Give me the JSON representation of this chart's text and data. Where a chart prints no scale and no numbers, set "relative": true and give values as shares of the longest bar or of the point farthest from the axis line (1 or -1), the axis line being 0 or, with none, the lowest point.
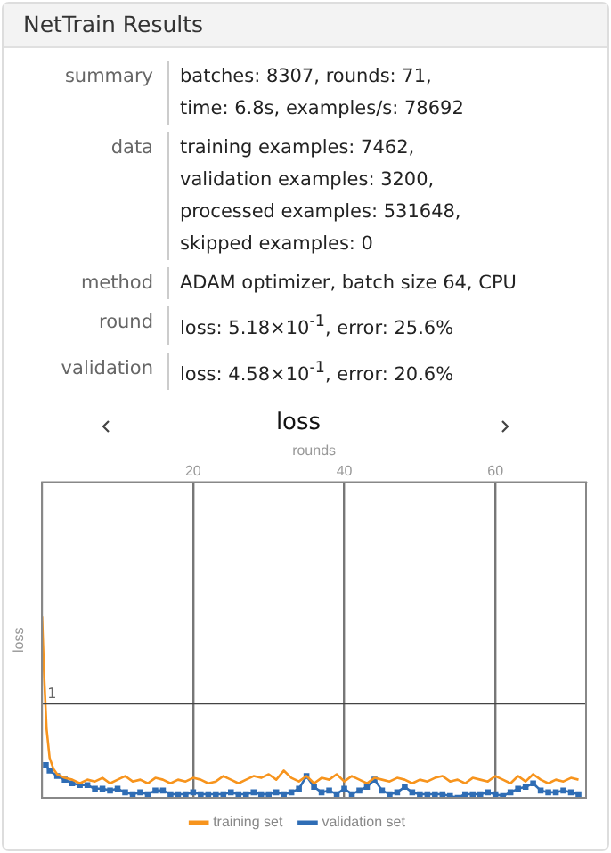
{
  "chart_data": {
    "type": "line",
    "title": "loss",
    "xlabel": "rounds",
    "ylabel": "loss",
    "annotations": [
      "NetTrain Results",
      "summary",
      "batches: 8307, rounds: 71,\ntime: 6.8s, examples/s: 78692",
      "data",
      "training examples: 7462,\nvalidation examples: 3200,\nprocessed examples: 531648,\nskipped examples: 0",
      "method",
      "ADAM optimizer, batch size 64, CPU",
      "round",
      "loss: 5.18×10$^{-1}$, error: 25.6%",
      "validation",
      "loss: 4.58×10$^{-1}$, error: 20.6%"
    ],
    "relative": true,
    "xlim": [
      0,
      72
    ],
    "xticks": [
      20,
      40,
      60
    ],
    "grid": "x",
    "legend": "bottom",
    "line_style": "solid",
    "ref_lines": [
      {
        "axis": "y",
        "value": 0.52,
        "label": "1",
        "color": "#444444"
      }
    ],
    "series": [
      {
        "name": "training set",
        "color": "#f7941d",
        "marker": "none",
        "x": [
          0,
          0.3,
          0.6,
          1,
          1.5,
          2,
          3,
          4,
          5,
          6,
          7,
          8,
          9,
          10,
          11,
          12,
          13,
          14,
          15,
          16,
          17,
          18,
          19,
          20,
          21,
          22,
          23,
          24,
          25,
          26,
          27,
          28,
          29,
          30,
          31,
          32,
          33,
          34,
          35,
          36,
          37,
          38,
          39,
          40,
          41,
          42,
          43,
          44,
          45,
          46,
          47,
          48,
          49,
          50,
          51,
          52,
          53,
          54,
          55,
          56,
          57,
          58,
          59,
          60,
          61,
          62,
          63,
          64,
          65,
          66,
          67,
          68,
          69,
          70,
          71
        ],
        "values": [
          1,
          0.65,
          0.38,
          0.22,
          0.16,
          0.13,
          0.11,
          0.1,
          0.08,
          0.1,
          0.09,
          0.11,
          0.08,
          0.1,
          0.12,
          0.09,
          0.1,
          0.08,
          0.11,
          0.1,
          0.08,
          0.1,
          0.09,
          0.11,
          0.1,
          0.08,
          0.09,
          0.12,
          0.1,
          0.08,
          0.1,
          0.12,
          0.11,
          0.13,
          0.1,
          0.15,
          0.11,
          0.09,
          0.12,
          0.08,
          0.11,
          0.1,
          0.13,
          0.09,
          0.12,
          0.1,
          0.08,
          0.11,
          0.1,
          0.09,
          0.11,
          0.1,
          0.08,
          0.1,
          0.09,
          0.11,
          0.12,
          0.09,
          0.1,
          0.08,
          0.11,
          0.1,
          0.09,
          0.12,
          0.1,
          0.08,
          0.12,
          0.09,
          0.13,
          0.1,
          0.08,
          0.1,
          0.09,
          0.11,
          0.1
        ]
      },
      {
        "name": "validation set",
        "color": "#2f6db5",
        "marker": "square",
        "x": [
          0.5,
          1,
          2,
          3,
          4,
          5,
          6,
          7,
          8,
          9,
          10,
          11,
          12,
          13,
          14,
          15,
          16,
          17,
          18,
          19,
          20,
          21,
          22,
          23,
          24,
          25,
          26,
          27,
          28,
          29,
          30,
          31,
          32,
          33,
          34,
          35,
          36,
          37,
          38,
          39,
          40,
          41,
          42,
          43,
          44,
          45,
          46,
          47,
          48,
          49,
          50,
          51,
          52,
          53,
          54,
          55,
          56,
          57,
          58,
          59,
          60,
          61,
          62,
          63,
          64,
          65,
          66,
          67,
          68,
          69,
          70,
          71
        ],
        "values": [
          0.18,
          0.15,
          0.12,
          0.1,
          0.08,
          0.07,
          0.07,
          0.05,
          0.05,
          0.04,
          0.05,
          0.03,
          0.02,
          0.03,
          0.02,
          0.04,
          0.04,
          0.02,
          0.02,
          0.02,
          0.03,
          0.02,
          0.02,
          0.02,
          0.02,
          0.03,
          0.02,
          0.02,
          0.03,
          0.02,
          0.02,
          0.03,
          0.02,
          0.03,
          0.05,
          0.12,
          0.06,
          0.03,
          0.04,
          0.02,
          0.05,
          0.02,
          0.04,
          0.06,
          0.1,
          0.04,
          0.02,
          0.03,
          0.06,
          0.03,
          0.02,
          0.02,
          0.02,
          0.02,
          0.01,
          0,
          0.02,
          0.02,
          0.02,
          0.03,
          0.02,
          0.01,
          0.03,
          0.05,
          0.06,
          0.08,
          0.04,
          0.03,
          0.03,
          0.04,
          0.03,
          0.02
        ]
      }
    ]
  }
}
